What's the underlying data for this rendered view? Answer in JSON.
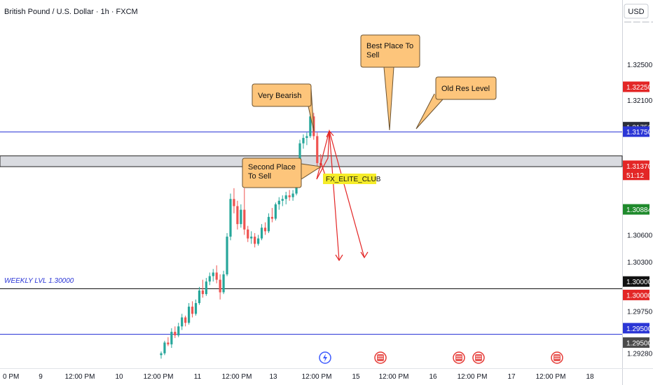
{
  "chart_data": {
    "type": "candlestick",
    "title": "British Pound / U.S. Dollar · 1h · FXCM",
    "currency": "USD",
    "colors": {
      "up": "#26a69a",
      "down": "#ef5350",
      "blue_line": "#2b36d6",
      "black_line": "#111111",
      "arrow": "#e32626",
      "callout_fill": "#fdc57b",
      "callout_stroke": "#6b5230",
      "zone_fill": "#d9dbe0",
      "badge_label": "#f5ec29"
    },
    "ylim": [
      1.292,
      1.331
    ],
    "y_ticks": [
      "1.32500",
      "1.32100",
      "1.30600",
      "1.30300",
      "1.29750",
      "1.29280"
    ],
    "x_ticks": [
      "0 PM",
      "9",
      "12:00 PM",
      "10",
      "12:00 PM",
      "11",
      "12:00 PM",
      "13",
      "12:00 PM",
      "15",
      "12:00 PM",
      "16",
      "12:00 PM",
      "17",
      "12:00 PM",
      "18"
    ],
    "price_tags": [
      {
        "label": "1.32250",
        "value": 1.3225,
        "bg": "#e32626",
        "fg": "#ffffff"
      },
      {
        "label": "1.31750",
        "value": 1.318,
        "bg": "#2a2e39",
        "fg": "#ffffff"
      },
      {
        "label": "1.31750",
        "value": 1.3175,
        "bg": "#2b36d6",
        "fg": "#ffffff"
      },
      {
        "label": "1.31370",
        "value": 1.3137,
        "bg": "#e32626",
        "fg": "#ffffff",
        "sub": "51:12"
      },
      {
        "label": "1.30884",
        "value": 1.30884,
        "bg": "#1f8a2c",
        "fg": "#ffffff"
      },
      {
        "label": "1.30000",
        "value": 1.3008,
        "bg": "#111111",
        "fg": "#ffffff"
      },
      {
        "label": "1.30000",
        "value": 1.2993,
        "bg": "#e32626",
        "fg": "#ffffff"
      },
      {
        "label": "1.29500",
        "value": 1.2956,
        "bg": "#2b36d6",
        "fg": "#ffffff"
      },
      {
        "label": "1.29500",
        "value": 1.294,
        "bg": "#4a4a4a",
        "fg": "#ffffff"
      }
    ],
    "lines": [
      {
        "value": 1.3175,
        "color": "blue"
      },
      {
        "value": 1.3,
        "color": "black"
      },
      {
        "value": 1.295,
        "color": "blue"
      }
    ],
    "zone": [
      1.3136,
      1.3148
    ],
    "weekly_label": "WEEKLY LVL 1.30000",
    "badge": "FX_ELITE_CLUB",
    "callouts": [
      {
        "text": [
          "Best Place To",
          "Sell"
        ],
        "anchor": "lower-left"
      },
      {
        "text": [
          "Old Res Level"
        ],
        "anchor": "lower-left"
      },
      {
        "text": [
          "Very Bearish"
        ],
        "anchor": "right"
      },
      {
        "text": [
          "Second Place",
          "To Sell"
        ],
        "anchor": "right"
      }
    ],
    "candles": [
      [
        1.2926,
        1.293,
        1.2922,
        1.2928
      ],
      [
        1.2928,
        1.2942,
        1.2926,
        1.294
      ],
      [
        1.294,
        1.2946,
        1.2936,
        1.2938
      ],
      [
        1.2938,
        1.2956,
        1.2934,
        1.2952
      ],
      [
        1.2952,
        1.2958,
        1.2945,
        1.2948
      ],
      [
        1.2948,
        1.2962,
        1.2946,
        1.2958
      ],
      [
        1.2958,
        1.2972,
        1.2954,
        1.2968
      ],
      [
        1.2968,
        1.297,
        1.2958,
        1.2962
      ],
      [
        1.2962,
        1.2984,
        1.296,
        1.298
      ],
      [
        1.298,
        1.2986,
        1.2968,
        1.2972
      ],
      [
        1.2972,
        1.2988,
        1.297,
        1.2984
      ],
      [
        1.2984,
        1.3002,
        1.2982,
        1.2998
      ],
      [
        1.2998,
        1.301,
        1.299,
        1.2994
      ],
      [
        1.2994,
        1.3012,
        1.2992,
        1.3008
      ],
      [
        1.3008,
        1.3018,
        1.3004,
        1.3014
      ],
      [
        1.3014,
        1.3022,
        1.3008,
        1.3018
      ],
      [
        1.3018,
        1.3026,
        1.3006,
        1.301
      ],
      [
        1.301,
        1.3016,
        1.2988,
        1.2996
      ],
      [
        1.2996,
        1.302,
        1.2994,
        1.3016
      ],
      [
        1.3016,
        1.3062,
        1.3014,
        1.3058
      ],
      [
        1.3058,
        1.3106,
        1.3054,
        1.31
      ],
      [
        1.31,
        1.3112,
        1.3084,
        1.3092
      ],
      [
        1.3092,
        1.3098,
        1.3066,
        1.3072
      ],
      [
        1.3072,
        1.3094,
        1.3068,
        1.3088
      ],
      [
        1.3088,
        1.3112,
        1.306,
        1.3066
      ],
      [
        1.3066,
        1.307,
        1.3052,
        1.3056
      ],
      [
        1.3056,
        1.3064,
        1.305,
        1.3058
      ],
      [
        1.3058,
        1.3062,
        1.3046,
        1.305
      ],
      [
        1.305,
        1.306,
        1.3048,
        1.3056
      ],
      [
        1.3056,
        1.3072,
        1.3054,
        1.3068
      ],
      [
        1.3068,
        1.3074,
        1.306,
        1.3064
      ],
      [
        1.3064,
        1.3084,
        1.3062,
        1.308
      ],
      [
        1.308,
        1.309,
        1.3074,
        1.3078
      ],
      [
        1.3078,
        1.3096,
        1.3076,
        1.3094
      ],
      [
        1.3094,
        1.3102,
        1.3088,
        1.3098
      ],
      [
        1.3098,
        1.3104,
        1.3092,
        1.31
      ],
      [
        1.31,
        1.3108,
        1.3094,
        1.3104
      ],
      [
        1.3104,
        1.311,
        1.3098,
        1.3102
      ],
      [
        1.3102,
        1.311,
        1.3098,
        1.3106
      ],
      [
        1.3106,
        1.314,
        1.3104,
        1.3136
      ],
      [
        1.3136,
        1.3166,
        1.3132,
        1.3162
      ],
      [
        1.3162,
        1.3172,
        1.3156,
        1.3168
      ],
      [
        1.3168,
        1.3174,
        1.316,
        1.317
      ],
      [
        1.317,
        1.3196,
        1.3168,
        1.3192
      ],
      [
        1.3192,
        1.3196,
        1.3166,
        1.317
      ],
      [
        1.317,
        1.3174,
        1.3136,
        1.314
      ],
      [
        1.314,
        1.315,
        1.3134,
        1.3138
      ]
    ],
    "x_axis_events": 5
  }
}
